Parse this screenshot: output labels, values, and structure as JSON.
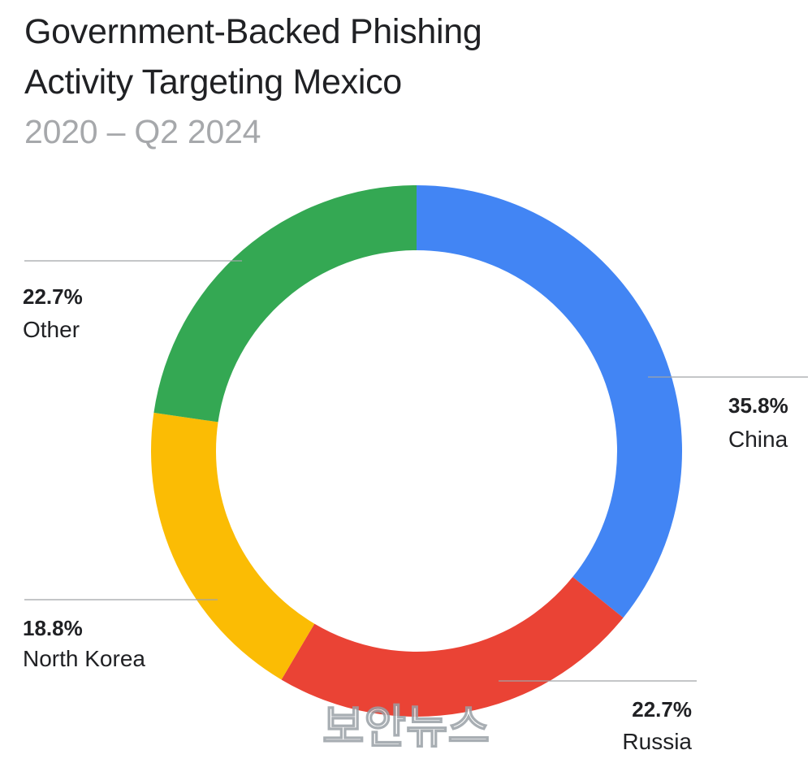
{
  "header": {
    "title_line1": "Government-Backed Phishing",
    "title_line2": "Activity Targeting Mexico",
    "subtitle": "2020 – Q2 2024"
  },
  "watermark": "보안뉴스",
  "chart_data": {
    "type": "pie",
    "donut": true,
    "title": "Government-Backed Phishing Activity Targeting Mexico",
    "subtitle": "2020 – Q2 2024",
    "unit": "%",
    "slices": [
      {
        "name": "China",
        "value": 35.8,
        "label": "35.8%",
        "color": "#4285F4"
      },
      {
        "name": "Russia",
        "value": 22.7,
        "label": "22.7%",
        "color": "#EA4335"
      },
      {
        "name": "North Korea",
        "value": 18.8,
        "label": "18.8%",
        "color": "#FBBC04"
      },
      {
        "name": "Other",
        "value": 22.7,
        "label": "22.7%",
        "color": "#34A853"
      }
    ],
    "start": "top",
    "direction": "clockwise",
    "legend": "none",
    "labels": "outside-with-leader-lines"
  }
}
